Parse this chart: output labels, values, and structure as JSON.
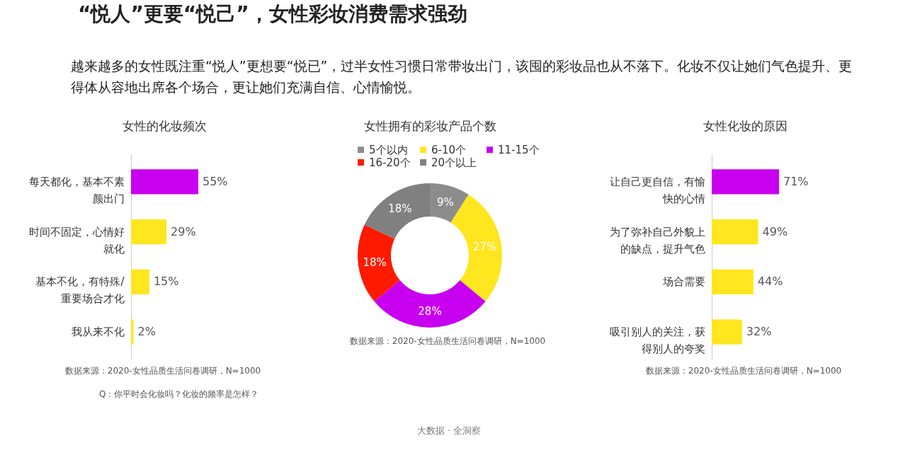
{
  "chart_data": [
    {
      "type": "other",
      "title": "“悦人”更要“悦己”，女性彩妆消费需求强劲",
      "subtitle": "越来越多的女性既注重“悦人”更想要“悦已”，过半女性习惯日常带妆出门，该囤的彩妆品也从不落下。化妆不仅让她们气色提升、更得体从容地出席各个场合，更让她们充满自信、心情愉悦。",
      "annotations": [
        "大数据 · 全洞察"
      ]
    },
    {
      "type": "bar",
      "orientation": "horizontal",
      "title": "女性的化妆频次",
      "categories": [
        "每天都化，基本不素颜出门",
        "时间不固定，心情好就化",
        "基本不化，有特殊/重要场合才化",
        "我从来不化"
      ],
      "values": [
        55,
        29,
        15,
        2
      ],
      "colors": [
        "#c800f0",
        "#ffe61e",
        "#ffe61e",
        "#ffe61e"
      ],
      "value_labels": [
        "55%",
        "29%",
        "15%",
        "2%"
      ],
      "annotations": [
        "数据来源：2020-女性品质生活问卷调研，N=1000",
        "Q：你平时会化妆吗？化妆的频率是怎样？"
      ]
    },
    {
      "type": "donut",
      "title": "女性拥有的彩妆产品个数",
      "categories": [
        "5个以内",
        "6-10个",
        "11-15个",
        "16-20个",
        "20个以上"
      ],
      "values": [
        9,
        27,
        28,
        18,
        18
      ],
      "colors": [
        "#8c8c8c",
        "#ffe61e",
        "#c800f0",
        "#ff1a00",
        "#808080"
      ],
      "value_labels": [
        "9%",
        "27%",
        "28%",
        "18%",
        "18%"
      ],
      "legend": "top",
      "annotations": [
        "数据来源：2020-女性品质生活问卷调研，N=1000"
      ]
    },
    {
      "type": "bar",
      "orientation": "horizontal",
      "title": "女性化妆的原因",
      "categories": [
        "让自己更自信，有愉快的心情",
        "为了弥补自己外貌上的缺点，提升气色",
        "场合需要",
        "吸引别人的关注，获得别人的夸奖"
      ],
      "values": [
        71,
        49,
        44,
        32
      ],
      "colors": [
        "#c800f0",
        "#ffe61e",
        "#ffe61e",
        "#ffe61e"
      ],
      "value_labels": [
        "71%",
        "49%",
        "44%",
        "32%"
      ],
      "annotations": [
        "数据来源：2020-女性品质生活问卷调研，N=1000"
      ]
    }
  ]
}
